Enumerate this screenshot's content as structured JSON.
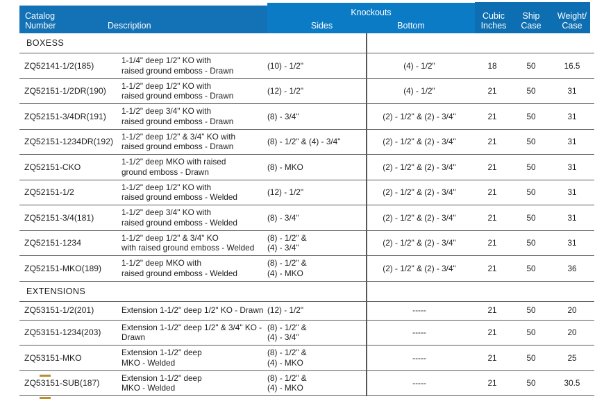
{
  "header": {
    "catalog_label": [
      "Catalog",
      "Number"
    ],
    "description_label": "Description",
    "knockouts_label": "Knockouts",
    "sides_label": "Sides",
    "bottom_label": "Bottom",
    "cubic_label": [
      "Cubic",
      "Inches"
    ],
    "ship_label": [
      "Ship",
      "Case"
    ],
    "weight_label": [
      "Weight/",
      "Case"
    ]
  },
  "colors": {
    "band_left": "#1371b5",
    "band_mid": "#0b7bc6",
    "band_right": "#0d6fb2",
    "line": "#55585b",
    "text": "#1e1e1e",
    "artifact": "#b8912c"
  },
  "table": {
    "sections": [
      {
        "name": "BOXESS",
        "rows": [
          {
            "catalog": "ZQ52141-1/2(185)",
            "desc": [
              "1-1/4\" deep 1/2\" KO with",
              "raised ground emboss - Drawn"
            ],
            "sides": [
              "(10) - 1/2\""
            ],
            "bottom": [
              "(4) - 1/2\""
            ],
            "cubic": "18",
            "ship": "50",
            "weight": "16.5"
          },
          {
            "catalog": "ZQ52151-1/2DR(190)",
            "desc": [
              "1-1/2\" deep 1/2\" KO with",
              "raised ground emboss - Drawn"
            ],
            "sides": [
              "(12) - 1/2\""
            ],
            "bottom": [
              "(4) - 1/2\""
            ],
            "cubic": "21",
            "ship": "50",
            "weight": "31"
          },
          {
            "catalog": "ZQ52151-3/4DR(191)",
            "desc": [
              "1-1/2\" deep 3/4\" KO with",
              "raised ground emboss - Drawn"
            ],
            "sides": [
              "(8) - 3/4\""
            ],
            "bottom": [
              "(2) - 1/2\" & (2) - 3/4\""
            ],
            "cubic": "21",
            "ship": "50",
            "weight": "31"
          },
          {
            "catalog": "ZQ52151-1234DR(192)",
            "desc": [
              "1-1/2\" deep 1/2\" & 3/4\" KO with",
              "raised ground emboss - Drawn"
            ],
            "sides": [
              "(8) - 1/2\" & (4) - 3/4\""
            ],
            "bottom": [
              "(2) - 1/2\" & (2) - 3/4\""
            ],
            "cubic": "21",
            "ship": "50",
            "weight": "31"
          },
          {
            "catalog": "ZQ52151-CKO",
            "desc": [
              "1-1/2\" deep MKO with raised",
              "ground emboss - Drawn"
            ],
            "sides": [
              "(8) - MKO"
            ],
            "bottom": [
              "(2) - 1/2\" & (2) - 3/4\""
            ],
            "cubic": "21",
            "ship": "50",
            "weight": "31"
          },
          {
            "catalog": "ZQ52151-1/2",
            "desc": [
              "1-1/2\" deep 1/2\" KO with",
              "raised ground emboss - Welded"
            ],
            "sides": [
              "(12) - 1/2\""
            ],
            "bottom": [
              "(2) - 1/2\" & (2) - 3/4\""
            ],
            "cubic": "21",
            "ship": "50",
            "weight": "31"
          },
          {
            "catalog": "ZQ52151-3/4(181)",
            "desc": [
              "1-1/2\" deep 3/4\" KO with",
              "raised ground emboss - Welded"
            ],
            "sides": [
              "(8) - 3/4\""
            ],
            "bottom": [
              "(2) - 1/2\" & (2) - 3/4\""
            ],
            "cubic": "21",
            "ship": "50",
            "weight": "31"
          },
          {
            "catalog": "ZQ52151-1234",
            "desc": [
              "1-1/2\" deep 1/2\" & 3/4\" KO",
              "with raised ground emboss - Welded"
            ],
            "sides": [
              "(8) - 1/2\" &",
              "(4) - 3/4\""
            ],
            "bottom": [
              "(2) - 1/2\" & (2) - 3/4\""
            ],
            "cubic": "21",
            "ship": "50",
            "weight": "31"
          },
          {
            "catalog": "ZQ52151-MKO(189)",
            "desc": [
              "1-1/2\" deep MKO with",
              "raised ground emboss - Welded"
            ],
            "sides": [
              "(8) - 1/2\" &",
              "(4) - MKO"
            ],
            "bottom": [
              "(2) - 1/2\" & (2) - 3/4\""
            ],
            "cubic": "21",
            "ship": "50",
            "weight": "36"
          }
        ]
      },
      {
        "name": "EXTENSIONS",
        "rows": [
          {
            "catalog": "ZQ53151-1/2(201)",
            "desc": [
              "Extension 1-1/2\" deep 1/2\" KO - Drawn"
            ],
            "sides": [
              "(12) - 1/2\""
            ],
            "bottom": [
              "-----"
            ],
            "cubic": "21",
            "ship": "50",
            "weight": "20"
          },
          {
            "catalog": "ZQ53151-1234(203)",
            "desc": [
              "Extension 1-1/2\" deep 1/2\" & 3/4\" KO - Drawn"
            ],
            "sides": [
              "(8) - 1/2\" &",
              "(4) - 3/4\""
            ],
            "bottom": [
              "-----"
            ],
            "cubic": "21",
            "ship": "50",
            "weight": "20"
          },
          {
            "catalog": "ZQ53151-MKO",
            "desc": [
              "Extension 1-1/2\" deep",
              "MKO - Welded"
            ],
            "sides": [
              "(8) - 1/2\" &",
              "(4) - MKO"
            ],
            "bottom": [
              "-----"
            ],
            "cubic": "21",
            "ship": "50",
            "weight": "25"
          },
          {
            "catalog": "ZQ53151-SUB(187)",
            "desc": [
              "Extension 1-1/2\" deep",
              "MKO - Welded"
            ],
            "sides": [
              "(8) - 1/2\" &",
              "(4) - MKO"
            ],
            "bottom": [
              "-----"
            ],
            "cubic": "21",
            "ship": "50",
            "weight": "30.5"
          }
        ]
      }
    ]
  }
}
